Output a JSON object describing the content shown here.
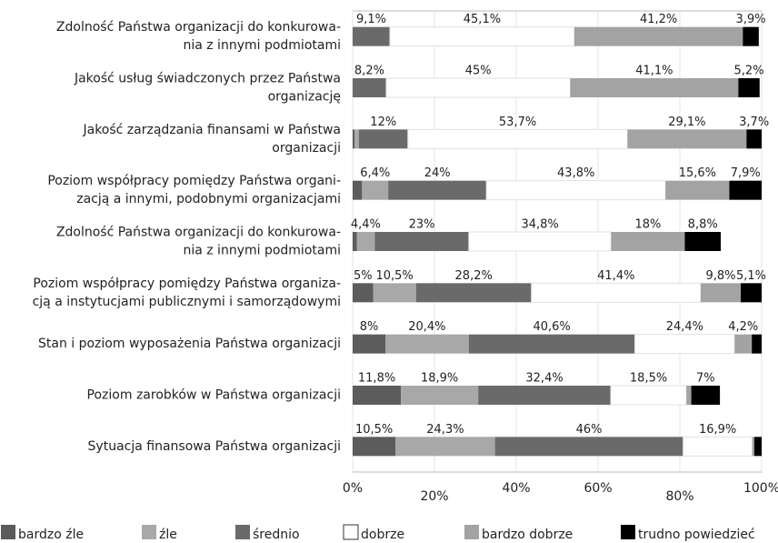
{
  "chart_data": {
    "type": "stacked-barh",
    "categories": [
      [
        "Zdolność Państwa organizacji do konkurowa-",
        "nia z innymi podmiotami"
      ],
      [
        "Jakość usług świadczonych przez Państwa",
        "organizację"
      ],
      [
        "Jakość zarządzania finansami w Państwa",
        "organizacji"
      ],
      [
        "Poziom współpracy pomiędzy Państwa organi-",
        "zacją a innymi, podobnymi organizacjami"
      ],
      [
        "Zdolność Państwa organizacji do konkurowa-",
        "nia z innymi podmiotami"
      ],
      [
        "Poziom współpracy pomiędzy Państwa organiza-",
        "cją a instytucjami publicznymi i samorządowymi"
      ],
      [
        "Stan i poziom wyposażenia Państwa organizacji"
      ],
      [
        "Poziom zarobków w Państwa organizacji"
      ],
      [
        "Sytuacja finansowa Państwa organizacji"
      ]
    ],
    "series": [
      {
        "name": "bardzo źle",
        "color": "#5c5c5c",
        "values": [
          0,
          0,
          0.5,
          2.3,
          1,
          5,
          8,
          11.8,
          10.5
        ],
        "value_labels": [
          null,
          null,
          null,
          null,
          null,
          "5%",
          "8%",
          "11,8%",
          "10,5%"
        ]
      },
      {
        "name": "źle",
        "color": "#a8a8a8",
        "values": [
          0,
          0,
          1,
          6.4,
          4.4,
          10.5,
          20.4,
          18.9,
          24.3
        ],
        "value_labels": [
          null,
          null,
          null,
          "6,4%",
          "4,4%",
          "10,5%",
          "20,4%",
          "18,9%",
          "24,3%"
        ]
      },
      {
        "name": "średnio",
        "color": "#6a6a6a",
        "values": [
          9.1,
          8.2,
          12,
          24,
          23,
          28.2,
          40.6,
          32.4,
          46
        ],
        "value_labels": [
          "9,1%",
          "8,2%",
          "12%",
          "24%",
          "23%",
          "28,2%",
          "40,6%",
          "32,4%",
          "46%"
        ]
      },
      {
        "name": "dobrze",
        "color": "#ffffff",
        "values": [
          45.1,
          45,
          53.7,
          43.8,
          34.8,
          41.4,
          24.4,
          18.5,
          16.9
        ],
        "value_labels": [
          "45,1%",
          "45%",
          "53,7%",
          "43,8%",
          "34,8%",
          "41,4%",
          "24,4%",
          "18,5%",
          "16,9%"
        ]
      },
      {
        "name": "bardzo dobrze",
        "color": "#a3a3a3",
        "values": [
          41.2,
          41.1,
          29.1,
          15.6,
          18,
          9.8,
          4.2,
          1.2,
          0.5
        ],
        "value_labels": [
          "41,2%",
          "41,1%",
          "29,1%",
          "15,6%",
          "18%",
          "9,8%",
          "4,2%",
          null,
          null
        ]
      },
      {
        "name": "trudno powiedzieć",
        "color": "#000000",
        "values": [
          3.9,
          5.2,
          3.7,
          7.9,
          8.8,
          5.1,
          2.4,
          7,
          1.8
        ],
        "value_labels": [
          "3,9%",
          "5,2%",
          "3,7%",
          "7,9%",
          "8,8%",
          "5,1%",
          null,
          "7%",
          null
        ]
      }
    ],
    "xlim": [
      0,
      100
    ],
    "xticks": [
      {
        "value": 0,
        "label": "0%"
      },
      {
        "value": 20,
        "label": "20%"
      },
      {
        "value": 40,
        "label": "40%"
      },
      {
        "value": 60,
        "label": "60%"
      },
      {
        "value": 80,
        "label": "80%"
      },
      {
        "value": 100,
        "label": "100%"
      }
    ],
    "grid": true
  }
}
